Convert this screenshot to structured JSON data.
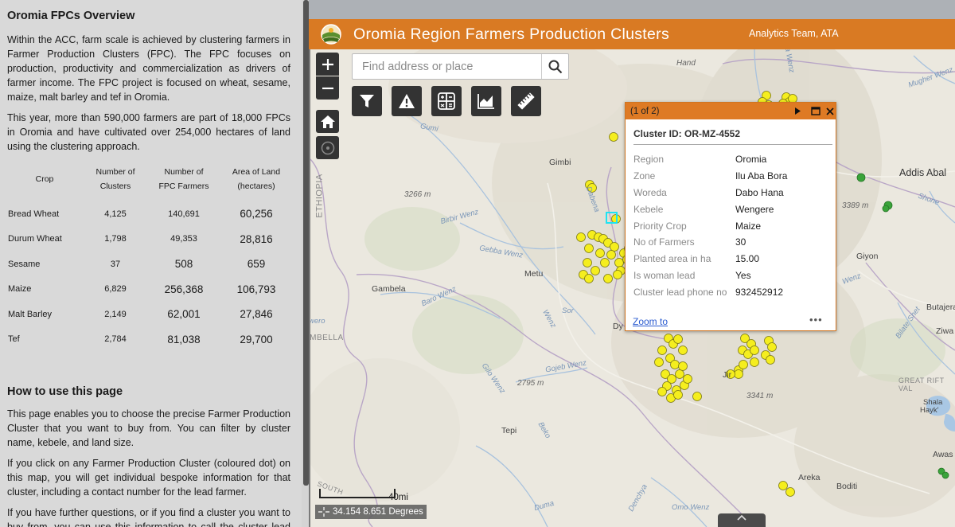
{
  "sidebar": {
    "title": "Oromia FPCs Overview",
    "intro_1": "Within the ACC, farm scale is achieved by clustering farmers in Farmer Production Clusters (FPC). The FPC focuses on production, productivity and commercialization as drivers of farmer income. The FPC project is focused on wheat, sesame, maize, malt barley and tef in Oromia.",
    "intro_2": "This year, more than 590,000 farmers are part of 18,000 FPCs in Oromia and have cultivated over 254,000 hectares of land using the clustering approach.",
    "table": {
      "headers": {
        "crop": "Crop",
        "clusters_1": "Number of",
        "clusters_2": "Clusters",
        "farmers_1": "Number of",
        "farmers_2": "FPC Farmers",
        "area_1": "Area of Land",
        "area_2": "(hectares)"
      },
      "rows": [
        {
          "crop": "Bread Wheat",
          "clusters": "4,125",
          "farmers": "140,691",
          "area": "60,256"
        },
        {
          "crop": "Durum Wheat",
          "clusters": "1,798",
          "farmers": "49,353",
          "area": "28,816"
        },
        {
          "crop": "Sesame",
          "clusters": "37",
          "farmers": "508",
          "area": "659"
        },
        {
          "crop": "Maize",
          "clusters": "6,829",
          "farmers": "256,368",
          "area": "106,793"
        },
        {
          "crop": "Malt Barley",
          "clusters": "2,149",
          "farmers": "62,001",
          "area": "27,846"
        },
        {
          "crop": "Tef",
          "clusters": "2,784",
          "farmers": "81,038",
          "area": "29,700"
        }
      ]
    },
    "howto_title": "How to use this page",
    "howto_1": "This page enables you to choose the precise Farmer Production Cluster that you want to buy from. You can filter by cluster name, kebele, and land size.",
    "howto_2": "If you click on any Farmer Production Cluster (coloured dot) on this map, you will get individual bespoke information for that cluster, including a contact number for the lead farmer.",
    "howto_3": "If you have further questions, or if you find a cluster you want to buy from, you can use this information to call the cluster lead and purchase."
  },
  "header": {
    "title": "Oromia Region Farmers Production Clusters",
    "team": "Analytics Team, ATA"
  },
  "search": {
    "placeholder": "Find address or place"
  },
  "popup": {
    "counter": "(1 of 2)",
    "cluster_id": "Cluster ID: OR-MZ-4552",
    "fields": [
      {
        "k": "Region",
        "v": "Oromia"
      },
      {
        "k": "Zone",
        "v": "Ilu Aba Bora"
      },
      {
        "k": "Woreda",
        "v": "Dabo Hana"
      },
      {
        "k": "Kebele",
        "v": "Wengere"
      },
      {
        "k": "Priority Crop",
        "v": "Maize"
      },
      {
        "k": "No of Farmers",
        "v": "30"
      },
      {
        "k": "Planted area in ha",
        "v": "15.00"
      },
      {
        "k": "Is woman lead",
        "v": "Yes"
      },
      {
        "k": "Cluster lead phone no",
        "v": "932452912"
      }
    ],
    "zoom_link": "Zoom to",
    "more": "•••"
  },
  "map": {
    "scale_label": "40mi",
    "coords": "34.154 8.651 Degrees",
    "places": {
      "gimbi": "Gimbi",
      "metu": "Metu",
      "gambela": "Gambela",
      "ambella": "AMBELLA",
      "ethiopia": "ETHIOPIA",
      "addis": "Addis Abal",
      "giyon": "Giyon",
      "butajera": "Butajera",
      "ziwa": "Ziwa",
      "great_rift": "GREAT RIFT VAL",
      "shala_1": "Shala",
      "shala_2": "Hayk'",
      "awas": "Awas",
      "areka": "Areka",
      "boditi": "Boditi",
      "tepi": "Tepi",
      "jimma": "Jir",
      "elev_3266": "3266 m",
      "elev_3389": "3389 m",
      "elev_2795": "2795 m",
      "elev_3341": "3341 m",
      "south": "SOUTH",
      "river_birbir": "Birbir Wenz",
      "river_dabena": "Dabena",
      "river_gebba": "Gebba Wenz",
      "river_baro": "Baro Wenz",
      "river_gojeb": "Gojeb Wenz",
      "river_gilo": "Gilo Wenz",
      "river_wenz": "Wenz",
      "river_bilate": "Bilate Shet",
      "river_shone": "Shone",
      "river_duma": "Duma",
      "river_omo": "Omo Wenz",
      "river_denchya": "Denchya",
      "wenz_top": "a Wenz",
      "river_mugher": "Mugher Wenz",
      "river_sor": "Sor",
      "river_akobo": "wero",
      "river_beko": "Beko",
      "river_gumi": "Gumi",
      "river_gibe": "Wenz",
      "place_hand": "Hand",
      "place_dilla": "Dy",
      "place_omo_wenz": "Omo Wenz"
    },
    "colors": {
      "header": "#d97a23",
      "maize_dot": "#f5ee1e",
      "wheat_dot": "#3aa33a"
    }
  }
}
